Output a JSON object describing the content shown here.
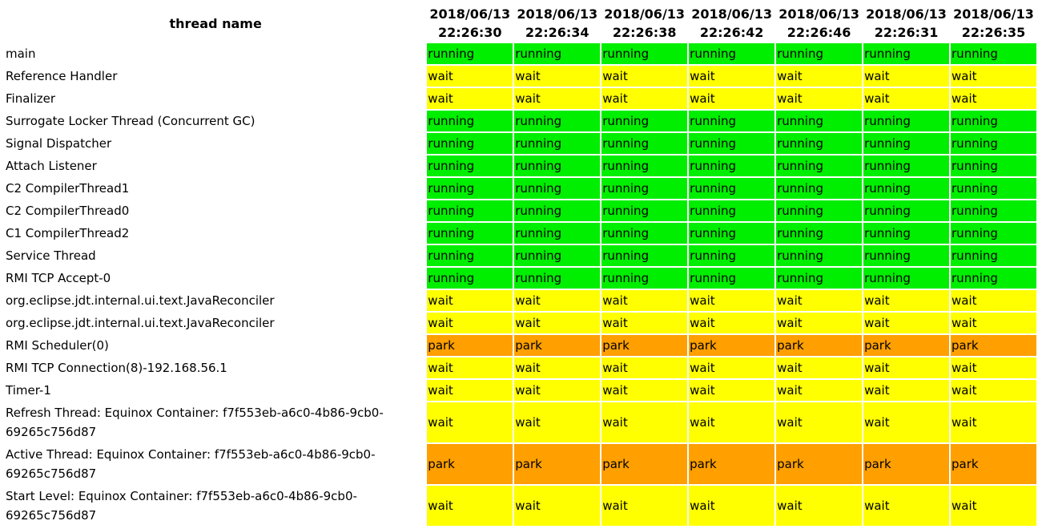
{
  "header": {
    "thread_name": "thread name",
    "columns": [
      {
        "date": "2018/06/13",
        "time": "22:26:30"
      },
      {
        "date": "2018/06/13",
        "time": "22:26:34"
      },
      {
        "date": "2018/06/13",
        "time": "22:26:38"
      },
      {
        "date": "2018/06/13",
        "time": "22:26:42"
      },
      {
        "date": "2018/06/13",
        "time": "22:26:46"
      },
      {
        "date": "2018/06/13",
        "time": "22:26:31"
      },
      {
        "date": "2018/06/13",
        "time": "22:26:35"
      }
    ]
  },
  "state_colors": {
    "running": "#00ee00",
    "wait": "#ffff00",
    "park": "#ff9f00"
  },
  "rows": [
    {
      "name": "main",
      "state": "running"
    },
    {
      "name": "Reference Handler",
      "state": "wait"
    },
    {
      "name": "Finalizer",
      "state": "wait"
    },
    {
      "name": "Surrogate Locker Thread (Concurrent GC)",
      "state": "running"
    },
    {
      "name": "Signal Dispatcher",
      "state": "running"
    },
    {
      "name": "Attach Listener",
      "state": "running"
    },
    {
      "name": "C2 CompilerThread1",
      "state": "running"
    },
    {
      "name": "C2 CompilerThread0",
      "state": "running"
    },
    {
      "name": "C1 CompilerThread2",
      "state": "running"
    },
    {
      "name": "Service Thread",
      "state": "running"
    },
    {
      "name": "RMI TCP Accept-0",
      "state": "running"
    },
    {
      "name": "org.eclipse.jdt.internal.ui.text.JavaReconciler",
      "state": "wait"
    },
    {
      "name": "org.eclipse.jdt.internal.ui.text.JavaReconciler",
      "state": "wait"
    },
    {
      "name": "RMI Scheduler(0)",
      "state": "park"
    },
    {
      "name": "RMI TCP Connection(8)-192.168.56.1",
      "state": "wait"
    },
    {
      "name": "Timer-1",
      "state": "wait"
    },
    {
      "name": "Refresh Thread: Equinox Container: f7f553eb-a6c0-4b86-9cb0-69265c756d87",
      "state": "wait"
    },
    {
      "name": "Active Thread: Equinox Container: f7f553eb-a6c0-4b86-9cb0-69265c756d87",
      "state": "park"
    },
    {
      "name": "Start Level: Equinox Container: f7f553eb-a6c0-4b86-9cb0-69265c756d87",
      "state": "wait"
    }
  ]
}
